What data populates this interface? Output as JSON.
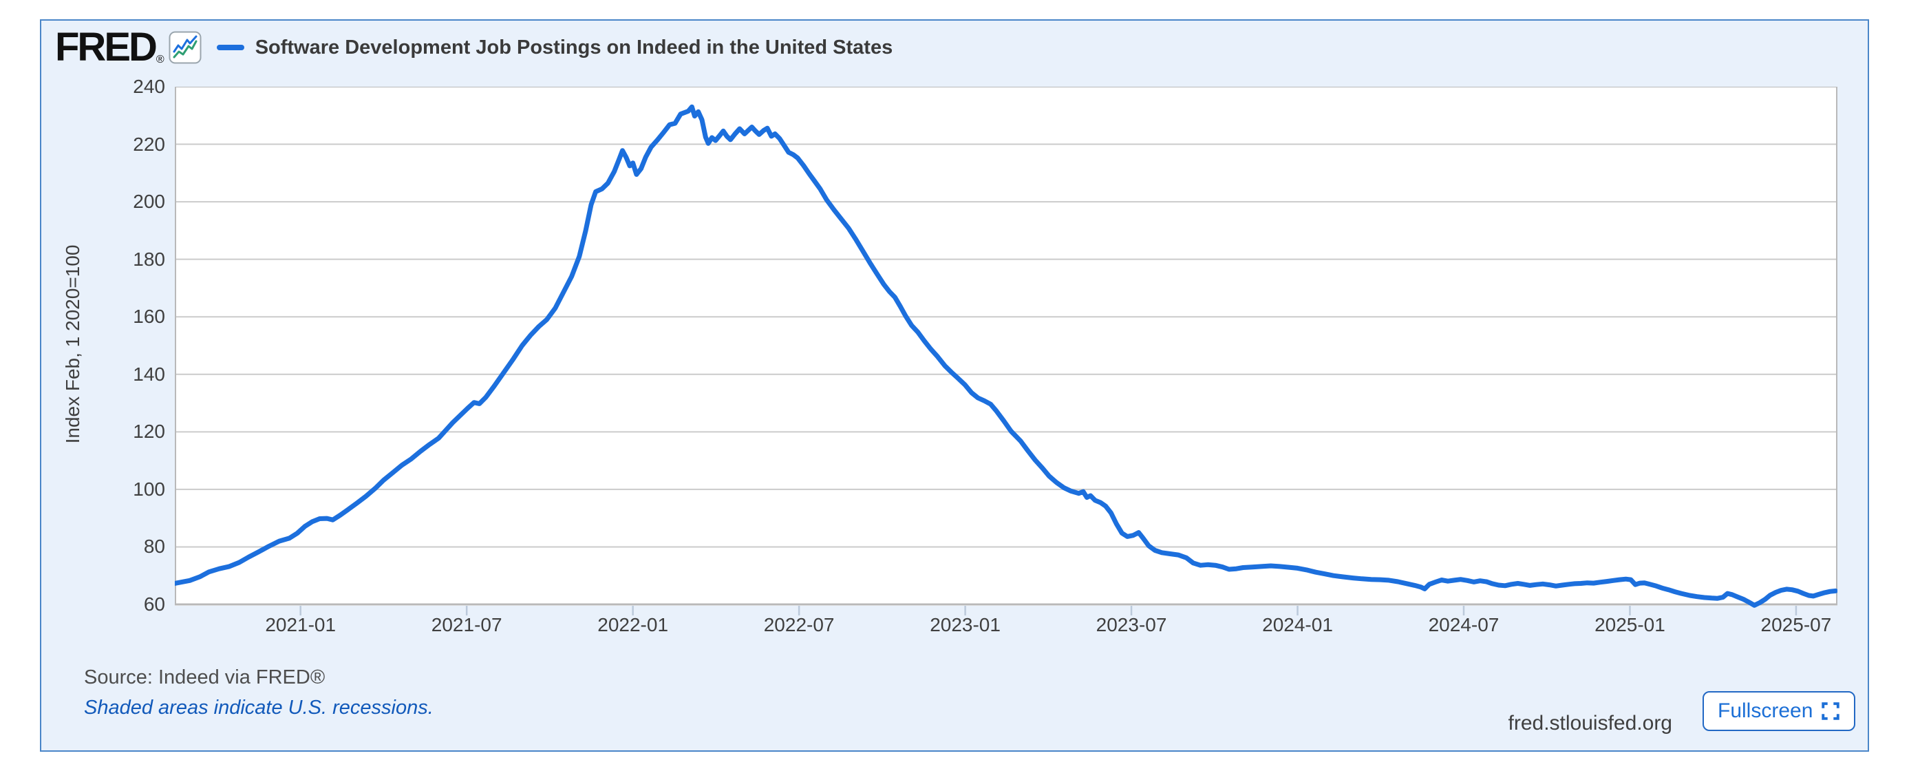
{
  "header": {
    "logo_text": "FRED",
    "logo_reg": "®"
  },
  "y_axis": {
    "title": "Index Feb, 1 2020=100",
    "ticks": [
      240,
      220,
      200,
      180,
      160,
      140,
      120,
      100,
      80,
      60
    ]
  },
  "x_axis": {
    "ticks": [
      "2021-01",
      "2021-07",
      "2022-01",
      "2022-07",
      "2023-01",
      "2023-07",
      "2024-01",
      "2024-07",
      "2025-01",
      "2025-07"
    ]
  },
  "footer": {
    "source": "Source: Indeed via FRED®",
    "note": "Shaded areas indicate U.S. recessions.",
    "site": "fred.stlouisfed.org",
    "fullscreen_label": "Fullscreen"
  },
  "colors": {
    "line": "#1c6fdd",
    "card_bg": "#e9f1fb",
    "card_border": "#4a86c8",
    "grid": "#cbcbcb",
    "plot_border": "#b9b9b9",
    "plot_border_bottom": "#a6a6a6",
    "tick_mark": "#bccadb",
    "link_blue": "#1159ba",
    "button_blue": "#1c6fd6"
  },
  "chart_data": {
    "type": "line",
    "title": "Software Development Job Postings on Indeed in the United States",
    "ylabel": "Index Feb, 1 2020=100",
    "x_range": [
      "2020-08-15",
      "2025-08-16"
    ],
    "y_range": [
      60,
      240
    ],
    "grid": true,
    "legend_position": "top-left",
    "series": [
      {
        "name": "Software Development Job Postings on Indeed in the United States",
        "color": "#1c6fdd",
        "points": [
          [
            "2020-08-15",
            67.3
          ],
          [
            "2020-09-01",
            68.3
          ],
          [
            "2020-09-12",
            69.6
          ],
          [
            "2020-09-22",
            71.3
          ],
          [
            "2020-10-03",
            72.4
          ],
          [
            "2020-10-14",
            73.2
          ],
          [
            "2020-10-25",
            74.6
          ],
          [
            "2020-11-05",
            76.5
          ],
          [
            "2020-11-16",
            78.3
          ],
          [
            "2020-11-27",
            80.2
          ],
          [
            "2020-12-08",
            82.0
          ],
          [
            "2020-12-19",
            83.0
          ],
          [
            "2020-12-28",
            84.8
          ],
          [
            "2021-01-06",
            87.2
          ],
          [
            "2021-01-14",
            88.8
          ],
          [
            "2021-01-22",
            89.8
          ],
          [
            "2021-01-30",
            89.9
          ],
          [
            "2021-02-06",
            89.4
          ],
          [
            "2021-02-14",
            91.0
          ],
          [
            "2021-02-22",
            92.8
          ],
          [
            "2021-03-02",
            95.2
          ],
          [
            "2021-03-12",
            97.6
          ],
          [
            "2021-03-22",
            100.3
          ],
          [
            "2021-04-01",
            103.2
          ],
          [
            "2021-04-11",
            105.8
          ],
          [
            "2021-04-21",
            108.4
          ],
          [
            "2021-05-01",
            110.6
          ],
          [
            "2021-05-11",
            113.2
          ],
          [
            "2021-05-21",
            115.6
          ],
          [
            "2021-05-31",
            117.8
          ],
          [
            "2021-06-08",
            120.4
          ],
          [
            "2021-06-16",
            123.2
          ],
          [
            "2021-06-24",
            125.6
          ],
          [
            "2021-07-02",
            128.2
          ],
          [
            "2021-07-09",
            130.2
          ],
          [
            "2021-07-15",
            129.8
          ],
          [
            "2021-07-22",
            132.0
          ],
          [
            "2021-08-01",
            136.0
          ],
          [
            "2021-08-11",
            140.5
          ],
          [
            "2021-08-21",
            145.0
          ],
          [
            "2021-09-01",
            150.0
          ],
          [
            "2021-09-10",
            153.5
          ],
          [
            "2021-09-19",
            156.5
          ],
          [
            "2021-09-28",
            159.0
          ],
          [
            "2021-10-07",
            163.0
          ],
          [
            "2021-10-16",
            168.5
          ],
          [
            "2021-10-25",
            174.0
          ],
          [
            "2021-11-03",
            181.0
          ],
          [
            "2021-11-10",
            190.0
          ],
          [
            "2021-11-16",
            199.0
          ],
          [
            "2021-11-21",
            203.5
          ],
          [
            "2021-11-28",
            204.5
          ],
          [
            "2021-12-04",
            206.5
          ],
          [
            "2021-12-11",
            210.5
          ],
          [
            "2021-12-16",
            214.5
          ],
          [
            "2021-12-20",
            217.8
          ],
          [
            "2021-12-24",
            215.5
          ],
          [
            "2021-12-28",
            212.5
          ],
          [
            "2022-01-01",
            213.5
          ],
          [
            "2022-01-05",
            209.5
          ],
          [
            "2022-01-10",
            211.5
          ],
          [
            "2022-01-15",
            215.5
          ],
          [
            "2022-01-21",
            219.0
          ],
          [
            "2022-01-28",
            221.5
          ],
          [
            "2022-02-04",
            224.0
          ],
          [
            "2022-02-11",
            226.8
          ],
          [
            "2022-02-17",
            227.3
          ],
          [
            "2022-02-23",
            230.5
          ],
          [
            "2022-03-01",
            231.5
          ],
          [
            "2022-03-05",
            233.0
          ],
          [
            "2022-03-08",
            229.8
          ],
          [
            "2022-03-12",
            231.3
          ],
          [
            "2022-03-16",
            228.5
          ],
          [
            "2022-03-20",
            222.5
          ],
          [
            "2022-03-23",
            220.3
          ],
          [
            "2022-03-27",
            222.3
          ],
          [
            "2022-03-31",
            221.3
          ],
          [
            "2022-04-05",
            223.0
          ],
          [
            "2022-04-09",
            224.6
          ],
          [
            "2022-04-13",
            222.8
          ],
          [
            "2022-04-17",
            221.6
          ],
          [
            "2022-04-22",
            223.6
          ],
          [
            "2022-04-27",
            225.4
          ],
          [
            "2022-05-02",
            223.6
          ],
          [
            "2022-05-06",
            224.8
          ],
          [
            "2022-05-10",
            226.0
          ],
          [
            "2022-05-14",
            224.6
          ],
          [
            "2022-05-18",
            223.4
          ],
          [
            "2022-05-23",
            224.8
          ],
          [
            "2022-05-27",
            225.6
          ],
          [
            "2022-06-01",
            222.8
          ],
          [
            "2022-06-05",
            223.6
          ],
          [
            "2022-06-10",
            222.0
          ],
          [
            "2022-06-15",
            219.6
          ],
          [
            "2022-06-20",
            217.2
          ],
          [
            "2022-06-25",
            216.4
          ],
          [
            "2022-06-30",
            215.2
          ],
          [
            "2022-07-06",
            212.6
          ],
          [
            "2022-07-12",
            209.8
          ],
          [
            "2022-07-18",
            207.2
          ],
          [
            "2022-07-24",
            204.6
          ],
          [
            "2022-08-01",
            200.6
          ],
          [
            "2022-08-09",
            197.2
          ],
          [
            "2022-08-17",
            194.0
          ],
          [
            "2022-08-25",
            190.8
          ],
          [
            "2022-09-02",
            187.2
          ],
          [
            "2022-09-10",
            183.0
          ],
          [
            "2022-09-18",
            178.8
          ],
          [
            "2022-09-26",
            174.8
          ],
          [
            "2022-10-03",
            171.2
          ],
          [
            "2022-10-09",
            168.8
          ],
          [
            "2022-10-15",
            166.8
          ],
          [
            "2022-10-21",
            163.6
          ],
          [
            "2022-10-27",
            160.2
          ],
          [
            "2022-11-03",
            157.0
          ],
          [
            "2022-11-10",
            154.6
          ],
          [
            "2022-11-17",
            151.6
          ],
          [
            "2022-11-24",
            148.8
          ],
          [
            "2022-12-01",
            146.2
          ],
          [
            "2022-12-09",
            143.0
          ],
          [
            "2022-12-16",
            140.8
          ],
          [
            "2022-12-23",
            138.8
          ],
          [
            "2022-12-31",
            136.4
          ],
          [
            "2023-01-08",
            133.6
          ],
          [
            "2023-01-15",
            131.8
          ],
          [
            "2023-01-22",
            130.8
          ],
          [
            "2023-01-29",
            129.6
          ],
          [
            "2023-02-05",
            127.2
          ],
          [
            "2023-02-13",
            123.8
          ],
          [
            "2023-02-21",
            120.2
          ],
          [
            "2023-03-01",
            116.8
          ],
          [
            "2023-03-09",
            113.4
          ],
          [
            "2023-03-17",
            110.2
          ],
          [
            "2023-03-25",
            107.4
          ],
          [
            "2023-04-02",
            104.6
          ],
          [
            "2023-04-10",
            102.4
          ],
          [
            "2023-04-18",
            100.6
          ],
          [
            "2023-04-26",
            99.4
          ],
          [
            "2023-05-04",
            98.6
          ],
          [
            "2023-05-09",
            99.2
          ],
          [
            "2023-05-13",
            97.2
          ],
          [
            "2023-05-17",
            97.8
          ],
          [
            "2023-05-22",
            96.2
          ],
          [
            "2023-05-28",
            95.4
          ],
          [
            "2023-06-03",
            94.2
          ],
          [
            "2023-06-09",
            91.8
          ],
          [
            "2023-06-15",
            88.0
          ],
          [
            "2023-06-21",
            84.8
          ],
          [
            "2023-06-27",
            83.6
          ],
          [
            "2023-07-03",
            84.0
          ],
          [
            "2023-07-09",
            85.0
          ],
          [
            "2023-07-14",
            83.0
          ],
          [
            "2023-07-20",
            80.4
          ],
          [
            "2023-07-27",
            78.8
          ],
          [
            "2023-08-04",
            78.0
          ],
          [
            "2023-08-13",
            77.6
          ],
          [
            "2023-08-22",
            77.2
          ],
          [
            "2023-08-31",
            76.2
          ],
          [
            "2023-09-08",
            74.4
          ],
          [
            "2023-09-16",
            73.6
          ],
          [
            "2023-09-24",
            73.8
          ],
          [
            "2023-10-02",
            73.6
          ],
          [
            "2023-10-10",
            73.0
          ],
          [
            "2023-10-17",
            72.2
          ],
          [
            "2023-10-25",
            72.4
          ],
          [
            "2023-11-02",
            72.8
          ],
          [
            "2023-11-12",
            73.0
          ],
          [
            "2023-11-22",
            73.2
          ],
          [
            "2023-12-02",
            73.4
          ],
          [
            "2023-12-12",
            73.2
          ],
          [
            "2023-12-22",
            72.9
          ],
          [
            "2024-01-01",
            72.6
          ],
          [
            "2024-01-11",
            72.0
          ],
          [
            "2024-01-21",
            71.2
          ],
          [
            "2024-01-31",
            70.6
          ],
          [
            "2024-02-10",
            70.0
          ],
          [
            "2024-02-20",
            69.6
          ],
          [
            "2024-03-01",
            69.2
          ],
          [
            "2024-03-11",
            68.9
          ],
          [
            "2024-03-21",
            68.7
          ],
          [
            "2024-03-31",
            68.6
          ],
          [
            "2024-04-10",
            68.4
          ],
          [
            "2024-04-20",
            67.9
          ],
          [
            "2024-04-30",
            67.2
          ],
          [
            "2024-05-08",
            66.6
          ],
          [
            "2024-05-15",
            66.0
          ],
          [
            "2024-05-19",
            65.4
          ],
          [
            "2024-05-24",
            67.0
          ],
          [
            "2024-05-31",
            67.8
          ],
          [
            "2024-06-07",
            68.5
          ],
          [
            "2024-06-14",
            68.1
          ],
          [
            "2024-06-21",
            68.4
          ],
          [
            "2024-06-28",
            68.7
          ],
          [
            "2024-07-05",
            68.3
          ],
          [
            "2024-07-12",
            67.8
          ],
          [
            "2024-07-19",
            68.2
          ],
          [
            "2024-07-26",
            67.9
          ],
          [
            "2024-08-02",
            67.2
          ],
          [
            "2024-08-09",
            66.7
          ],
          [
            "2024-08-16",
            66.5
          ],
          [
            "2024-08-23",
            67.0
          ],
          [
            "2024-08-30",
            67.3
          ],
          [
            "2024-09-06",
            67.0
          ],
          [
            "2024-09-13",
            66.6
          ],
          [
            "2024-09-20",
            66.9
          ],
          [
            "2024-09-27",
            67.1
          ],
          [
            "2024-10-04",
            66.8
          ],
          [
            "2024-10-11",
            66.4
          ],
          [
            "2024-10-18",
            66.7
          ],
          [
            "2024-10-25",
            67.0
          ],
          [
            "2024-11-01",
            67.2
          ],
          [
            "2024-11-08",
            67.3
          ],
          [
            "2024-11-15",
            67.5
          ],
          [
            "2024-11-22",
            67.4
          ],
          [
            "2024-11-29",
            67.7
          ],
          [
            "2024-12-06",
            68.0
          ],
          [
            "2024-12-13",
            68.3
          ],
          [
            "2024-12-20",
            68.6
          ],
          [
            "2024-12-27",
            68.8
          ],
          [
            "2025-01-02",
            68.6
          ],
          [
            "2025-01-07",
            66.9
          ],
          [
            "2025-01-12",
            67.4
          ],
          [
            "2025-01-17",
            67.5
          ],
          [
            "2025-01-23",
            67.0
          ],
          [
            "2025-01-30",
            66.4
          ],
          [
            "2025-02-06",
            65.7
          ],
          [
            "2025-02-13",
            65.1
          ],
          [
            "2025-02-20",
            64.4
          ],
          [
            "2025-02-27",
            63.8
          ],
          [
            "2025-03-06",
            63.1
          ],
          [
            "2025-03-14",
            62.7
          ],
          [
            "2025-03-22",
            62.4
          ],
          [
            "2025-03-30",
            62.2
          ],
          [
            "2025-04-06",
            62.1
          ],
          [
            "2025-04-12",
            62.5
          ],
          [
            "2025-04-17",
            63.8
          ],
          [
            "2025-04-22",
            63.4
          ],
          [
            "2025-04-28",
            62.6
          ],
          [
            "2025-05-04",
            61.8
          ],
          [
            "2025-05-10",
            60.8
          ],
          [
            "2025-05-16",
            59.7
          ],
          [
            "2025-05-22",
            60.6
          ],
          [
            "2025-05-28",
            61.8
          ],
          [
            "2025-06-03",
            63.2
          ],
          [
            "2025-06-09",
            64.2
          ],
          [
            "2025-06-15",
            64.9
          ],
          [
            "2025-06-21",
            65.3
          ],
          [
            "2025-06-27",
            65.1
          ],
          [
            "2025-07-03",
            64.6
          ],
          [
            "2025-07-09",
            63.8
          ],
          [
            "2025-07-15",
            63.1
          ],
          [
            "2025-07-20",
            62.9
          ],
          [
            "2025-07-26",
            63.5
          ],
          [
            "2025-08-02",
            64.1
          ],
          [
            "2025-08-08",
            64.5
          ],
          [
            "2025-08-14",
            64.7
          ]
        ]
      }
    ]
  }
}
